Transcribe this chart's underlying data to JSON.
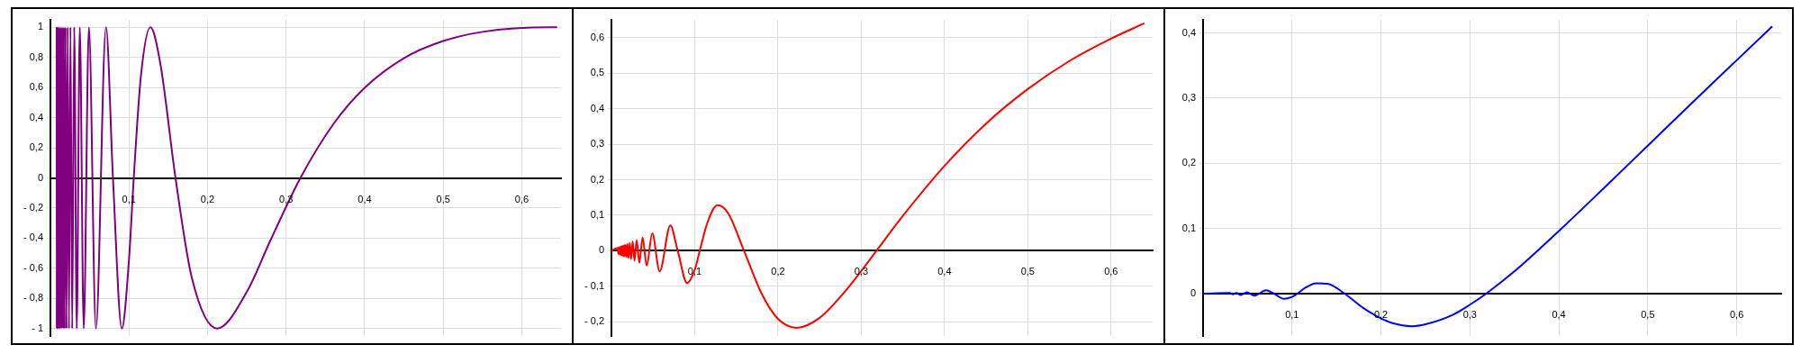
{
  "chart_data": [
    {
      "type": "line",
      "xlim": [
        0,
        0.65
      ],
      "ylim": [
        -1.05,
        1.05
      ],
      "grid": true,
      "xticks": [
        {
          "value": 0.1,
          "label": "0,1"
        },
        {
          "value": 0.2,
          "label": "0,2"
        },
        {
          "value": 0.3,
          "label": "0,3"
        },
        {
          "value": 0.4,
          "label": "0,4"
        },
        {
          "value": 0.5,
          "label": "0,5"
        },
        {
          "value": 0.6,
          "label": "0,6"
        }
      ],
      "yticks": [
        {
          "value": -1,
          "label": "- 1"
        },
        {
          "value": -0.8,
          "label": "- 0,8"
        },
        {
          "value": -0.6,
          "label": "- 0,6"
        },
        {
          "value": -0.4,
          "label": "- 0,4"
        },
        {
          "value": -0.2,
          "label": "- 0,2"
        },
        {
          "value": 0,
          "label": "0"
        },
        {
          "value": 0.2,
          "label": "0,2"
        },
        {
          "value": 0.4,
          "label": "0,4"
        },
        {
          "value": 0.6,
          "label": "0,6"
        },
        {
          "value": 0.8,
          "label": "0,8"
        },
        {
          "value": 1,
          "label": "1"
        }
      ],
      "series": [
        {
          "color": "#800080",
          "x": [
            0.0079,
            0.0081,
            0.0083,
            0.0085,
            0.0087,
            0.009,
            0.0092,
            0.0095,
            0.0098,
            0.0101,
            0.0104,
            0.0108,
            0.0112,
            0.0116,
            0.012,
            0.0125,
            0.013,
            0.0136,
            0.0141,
            0.0148,
            0.0155,
            0.0163,
            0.0172,
            0.0182,
            0.0193,
            0.0205,
            0.022,
            0.0236,
            0.0255,
            0.0277,
            0.0303,
            0.0335,
            0.0374,
            0.0424,
            0.049,
            0.0579,
            0.0707,
            0.0796,
            0.0909,
            0.1,
            0.1061,
            0.115,
            0.1273,
            0.14,
            0.1592,
            0.18,
            0.2122,
            0.25,
            0.28,
            0.3183,
            0.36,
            0.4,
            0.45,
            0.5,
            0.55,
            0.6366,
            0.645
          ],
          "values": [
            1,
            -1,
            1,
            -1,
            1,
            -1,
            1,
            -1,
            1,
            -1,
            1,
            -1,
            1,
            -1,
            1,
            -1,
            1,
            -1,
            1,
            -1,
            1,
            -1,
            1,
            -1,
            1,
            -1,
            1,
            -1,
            1,
            -1,
            1,
            -1,
            1,
            -1,
            1,
            -1,
            1,
            0,
            -1,
            -0.544,
            0,
            0.666,
            1,
            0.757,
            0,
            -0.663,
            -1,
            -0.757,
            -0.416,
            0,
            0.356,
            0.598,
            0.795,
            0.909,
            0.97,
            1,
            1
          ]
        }
      ]
    },
    {
      "type": "line",
      "xlim": [
        0,
        0.65
      ],
      "ylim": [
        -0.24,
        0.65
      ],
      "grid": true,
      "xticks": [
        {
          "value": 0.1,
          "label": "0,1"
        },
        {
          "value": 0.2,
          "label": "0,2"
        },
        {
          "value": 0.3,
          "label": "0,3"
        },
        {
          "value": 0.4,
          "label": "0,4"
        },
        {
          "value": 0.5,
          "label": "0,5"
        },
        {
          "value": 0.6,
          "label": "0,6"
        }
      ],
      "yticks": [
        {
          "value": -0.2,
          "label": "- 0,2"
        },
        {
          "value": -0.1,
          "label": "- 0,1"
        },
        {
          "value": 0,
          "label": "0"
        },
        {
          "value": 0.1,
          "label": "0,1"
        },
        {
          "value": 0.2,
          "label": "0,2"
        },
        {
          "value": 0.3,
          "label": "0,3"
        },
        {
          "value": 0.4,
          "label": "0,4"
        },
        {
          "value": 0.5,
          "label": "0,5"
        },
        {
          "value": 0.6,
          "label": "0,6"
        }
      ],
      "series": [
        {
          "color": "#ff0000",
          "x": [
            0,
            0.0079,
            0.0081,
            0.0083,
            0.0085,
            0.0087,
            0.009,
            0.0092,
            0.0095,
            0.0098,
            0.0101,
            0.0104,
            0.0108,
            0.0112,
            0.0116,
            0.012,
            0.0125,
            0.013,
            0.0136,
            0.0141,
            0.0148,
            0.0155,
            0.0163,
            0.0172,
            0.0182,
            0.0193,
            0.0205,
            0.022,
            0.0236,
            0.0255,
            0.0277,
            0.0303,
            0.0335,
            0.0374,
            0.0424,
            0.049,
            0.0579,
            0.0707,
            0.0796,
            0.0909,
            0.1,
            0.1061,
            0.115,
            0.1273,
            0.14,
            0.1592,
            0.18,
            0.2,
            0.2225,
            0.25,
            0.28,
            0.3,
            0.3183,
            0.35,
            0.4,
            0.45,
            0.5,
            0.55,
            0.6,
            0.64
          ],
          "values": [
            0,
            0.008,
            -0.008,
            0.008,
            -0.009,
            0.009,
            -0.009,
            0.009,
            -0.01,
            0.01,
            -0.01,
            0.01,
            -0.011,
            0.011,
            -0.012,
            0.012,
            -0.013,
            0.013,
            -0.014,
            0.014,
            -0.015,
            0.016,
            -0.016,
            0.017,
            -0.018,
            0.019,
            -0.021,
            0.022,
            -0.024,
            0.026,
            -0.028,
            0.03,
            -0.034,
            0.037,
            -0.042,
            0.049,
            -0.058,
            0.071,
            0,
            -0.091,
            -0.054,
            0,
            0.077,
            0.128,
            0.106,
            0,
            -0.119,
            -0.192,
            -0.217,
            -0.189,
            -0.116,
            -0.057,
            0,
            0.098,
            0.239,
            0.358,
            0.455,
            0.534,
            0.597,
            0.64
          ]
        }
      ]
    },
    {
      "type": "line",
      "xlim": [
        0,
        0.65
      ],
      "ylim": [
        -0.065,
        0.42
      ],
      "grid": true,
      "xticks": [
        {
          "value": 0.1,
          "label": "0,1"
        },
        {
          "value": 0.2,
          "label": "0,2"
        },
        {
          "value": 0.3,
          "label": "0,3"
        },
        {
          "value": 0.4,
          "label": "0,4"
        },
        {
          "value": 0.5,
          "label": "0,5"
        },
        {
          "value": 0.6,
          "label": "0,6"
        }
      ],
      "yticks": [
        {
          "value": 0,
          "label": "0"
        },
        {
          "value": 0.1,
          "label": "0,1"
        },
        {
          "value": 0.2,
          "label": "0,2"
        },
        {
          "value": 0.3,
          "label": "0,3"
        },
        {
          "value": 0.4,
          "label": "0,4"
        }
      ],
      "series": [
        {
          "color": "#0000ff",
          "x": [
            0,
            0.0303,
            0.0335,
            0.0374,
            0.0424,
            0.049,
            0.0579,
            0.0707,
            0.0796,
            0.0909,
            0.1,
            0.1061,
            0.115,
            0.1273,
            0.14,
            0.1592,
            0.18,
            0.2,
            0.2122,
            0.235,
            0.25,
            0.28,
            0.3,
            0.3183,
            0.35,
            0.4,
            0.45,
            0.5,
            0.55,
            0.6,
            0.64
          ],
          "values": [
            0,
            0.001,
            -0.001,
            0.001,
            -0.002,
            0.002,
            -0.003,
            0.005,
            0,
            -0.008,
            -0.005,
            0,
            0.009,
            0.016,
            0.015,
            0,
            -0.022,
            -0.038,
            -0.045,
            -0.05,
            -0.047,
            -0.033,
            -0.017,
            0,
            0.034,
            0.096,
            0.161,
            0.227,
            0.293,
            0.358,
            0.41
          ]
        }
      ]
    }
  ]
}
